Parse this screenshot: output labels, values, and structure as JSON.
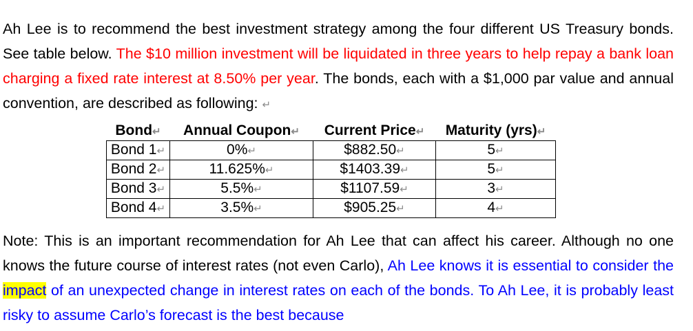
{
  "paragraph1": {
    "text_a": "Ah Lee is to recommend the best investment strategy among the four different US Treasury bonds. See table below. ",
    "text_red": "The $10 million investment will be liquidated in three years to help repay a bank loan charging a fixed rate interest at 8.50% per year",
    "text_b": ". The bonds, each with a $1,000 par value and annual convention, are described as following: ",
    "return_mark": "↵"
  },
  "table": {
    "headers": [
      "Bond",
      "Annual Coupon",
      "Current Price",
      "Maturity (yrs)"
    ],
    "rows": [
      [
        "Bond 1",
        "0%",
        "$882.50",
        "5"
      ],
      [
        "Bond 2",
        "11.625%",
        "$1403.39",
        "5"
      ],
      [
        "Bond 3",
        "5.5%",
        "$1107.59",
        "3"
      ],
      [
        "Bond 4",
        "3.5%",
        "$905.25",
        "4"
      ]
    ]
  },
  "paragraph2": {
    "text_a": "Note: This is an important recommendation for Ah Lee that can affect his career. Although no one knows the future course of interest rates (not even Carlo), ",
    "text_blue_1": "Ah Lee knows it is essential to consider the ",
    "text_highlight": "impact",
    "text_blue_2": " of an unexpected change in interest rates on each of the bonds. To Ah Lee, it is probably least risky to assume Carlo’s forecast is the best because"
  }
}
